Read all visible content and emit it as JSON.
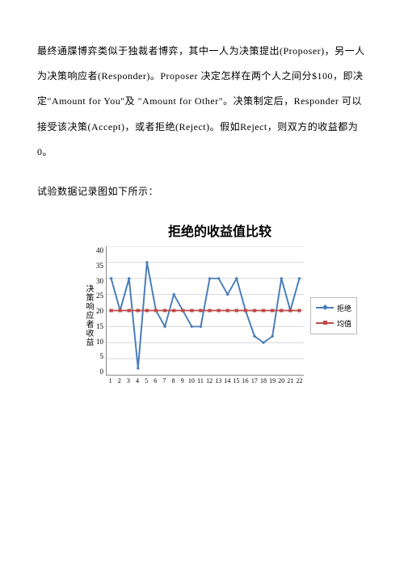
{
  "paragraph1": "最终通牒博弈类似于独裁者博弈，其中一人为决策提出(Proposer)，另一人为决策响应者(Responder)。Proposer 决定怎样在两个人之间分$100，即决定\"Amount for You\"及 \"Amount for Other\"。决策制定后，Responder 可以接受该决策(Accept)，或者拒绝(Reject)。假如Reject，则双方的收益都为0。",
  "paragraph2": "试验数据记录图如下所示：",
  "chart": {
    "type": "line",
    "title": "拒绝的收益值比较",
    "ylabel": "决策响应者收益",
    "title_fontsize": 16,
    "label_fontsize": 10,
    "categories": [
      1,
      2,
      3,
      4,
      5,
      6,
      7,
      8,
      9,
      10,
      11,
      12,
      13,
      14,
      15,
      16,
      17,
      18,
      19,
      20,
      21,
      22
    ],
    "series": [
      {
        "name": "拒绝",
        "color": "#4a7ebb",
        "marker": "diamond",
        "values": [
          30,
          20,
          30,
          2,
          35,
          20,
          15,
          25,
          20,
          15,
          15,
          30,
          30,
          25,
          30,
          20,
          12,
          10,
          12,
          30,
          20,
          30
        ]
      },
      {
        "name": "均值",
        "color": "#be4b48",
        "marker": "square",
        "values": [
          20,
          20,
          20,
          20,
          20,
          20,
          20,
          20,
          20,
          20,
          20,
          20,
          20,
          20,
          20,
          20,
          20,
          20,
          20,
          20,
          20,
          20
        ]
      }
    ],
    "ylim": [
      0,
      40
    ],
    "ytick_step": 5,
    "grid_color": "#d8d8d8",
    "background_color": "#ffffff",
    "line_width": 1.8,
    "marker_size": 4
  }
}
